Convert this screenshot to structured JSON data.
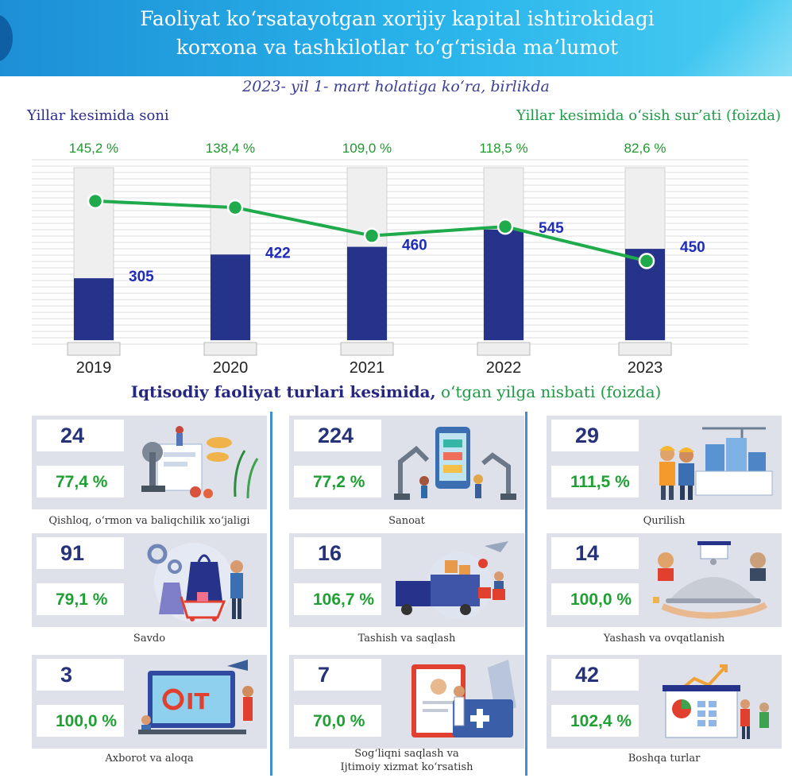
{
  "header": {
    "line1": "Faoliyat ko‘rsatayotgan xorijiy kapital ishtirokidagi",
    "line2": "korxona va tashkilotlar to‘g‘risida ma’lumot"
  },
  "subtitle": "2023- yil 1- mart holatiga ko‘ra, birlikda",
  "chart_labels": {
    "left": "Yillar kesimida soni",
    "right": "Yillar kesimida o‘sish sur’ati (foizda)"
  },
  "chart_data": {
    "type": "bar",
    "categories": [
      "2019",
      "2020",
      "2021",
      "2022",
      "2023"
    ],
    "series": [
      {
        "name": "Yillar kesimida soni",
        "type": "bar",
        "values": [
          305,
          422,
          460,
          545,
          450
        ],
        "value_labels": [
          "305",
          "422",
          "460",
          "545",
          "450"
        ]
      },
      {
        "name": "Yillar kesimida o‘sish sur’ati (foizda)",
        "type": "line",
        "values": [
          145.2,
          138.4,
          109.0,
          118.5,
          82.6
        ],
        "value_labels": [
          "145,2 %",
          "138,4 %",
          "109,0 %",
          "118,5 %",
          "82,6 %"
        ]
      }
    ],
    "bar_ylim": [
      0,
      850
    ],
    "line_ylim": [
      0,
      180
    ],
    "colors": {
      "bar": "#26338a",
      "bar_bg": "#efefef",
      "line": "#1faa4b",
      "bar_label": "#1e2cb8",
      "pct_label": "#1e9a2c",
      "year_label": "#222222"
    }
  },
  "section": {
    "title_bold": "Iqtisodiy faoliyat turlari kesimida,",
    "title_rest": " o‘tgan yilga nisbati (foizda)"
  },
  "sectors": [
    {
      "count": "24",
      "pct": "77,4 %",
      "label": "Qishloq, o‘rmon va baliqchilik xo‘jaligi",
      "icon": "agriculture-illustration"
    },
    {
      "count": "224",
      "pct": "77,2 %",
      "label": "Sanoat",
      "icon": "industry-illustration"
    },
    {
      "count": "29",
      "pct": "111,5 %",
      "label": "Qurilish",
      "icon": "construction-illustration"
    },
    {
      "count": "91",
      "pct": "79,1 %",
      "label": "Savdo",
      "icon": "trade-illustration"
    },
    {
      "count": "16",
      "pct": "106,7 %",
      "label": "Tashish va saqlash",
      "icon": "transport-illustration"
    },
    {
      "count": "14",
      "pct": "100,0 %",
      "label": "Yashash va ovqatlanish",
      "icon": "hospitality-illustration"
    },
    {
      "count": "3",
      "pct": "100,0 %",
      "label": "Axborot va aloqa",
      "icon": "it-illustration",
      "art_text": "IT"
    },
    {
      "count": "7",
      "pct": "70,0 %",
      "label": "Sog‘liqni saqlash va Ijtimoiy xizmat ko‘rsatish",
      "label_line1": "Sog‘liqni saqlash va",
      "label_line2": "Ijtimoiy xizmat ko‘rsatish",
      "icon": "healthcare-illustration"
    },
    {
      "count": "42",
      "pct": "102,4 %",
      "label": "Boshqa turlar",
      "icon": "other-illustration"
    }
  ]
}
